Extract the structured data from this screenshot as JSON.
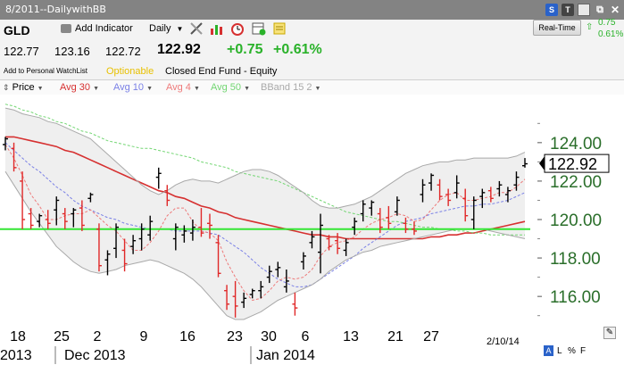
{
  "window": {
    "title": "8/2011--DailywithBB",
    "icons": [
      "s-dropdown-icon",
      "tv-icon",
      "save-icon",
      "restore-icon",
      "close-icon"
    ]
  },
  "toolbar": {
    "symbol": "GLD",
    "add_indicator": "Add Indicator",
    "period": "Daily",
    "tools": [
      "drawing-tools-icon",
      "indicator-bars-icon",
      "alarm-clock-icon",
      "calendar-add-icon",
      "note-icon"
    ]
  },
  "quote": {
    "open": "122.77",
    "high": "123.16",
    "low": "122.72",
    "last": "122.92",
    "change": "+0.75",
    "change_pct": "+0.61%",
    "watchlist": "Add to Personal WatchList",
    "optionable": "Optionable",
    "description": "Closed End Fund - Equity",
    "realtime_button": "Real-Time",
    "rt_change": "0.75",
    "rt_change_pct": "0.61%"
  },
  "legend": [
    {
      "label": "Price",
      "color": "#000000"
    },
    {
      "label": "Avg 30",
      "color": "#d63030"
    },
    {
      "label": "Avg 10",
      "color": "#7a80e6"
    },
    {
      "label": "Avg 4",
      "color": "#ee7a7a"
    },
    {
      "label": "Avg 50",
      "color": "#72d672"
    },
    {
      "label": "BBand 15 2",
      "color": "#a9a9a9"
    }
  ],
  "chart_data": {
    "type": "candlestick",
    "last_price_label": "122.92",
    "reference_line": 119.5,
    "ylim": [
      114.8,
      126.5
    ],
    "yticks": [
      "124.00",
      "122.00",
      "120.00",
      "118.00",
      "116.00"
    ],
    "xticks": [
      "18",
      "25",
      "2",
      "9",
      "16",
      "23",
      "30",
      "6",
      "13",
      "21",
      "27"
    ],
    "month_labels": [
      "2013",
      "Dec 2013",
      "Jan 2014"
    ],
    "date_label": "2/10/14",
    "bars": [
      {
        "o": 123.9,
        "h": 124.3,
        "l": 123.6,
        "c": 124.2
      },
      {
        "o": 123.7,
        "h": 124.0,
        "l": 122.5,
        "c": 122.7
      },
      {
        "o": 122.0,
        "h": 122.5,
        "l": 119.5,
        "c": 120.0
      },
      {
        "o": 120.3,
        "h": 120.6,
        "l": 119.5,
        "c": 119.7
      },
      {
        "o": 119.9,
        "h": 120.3,
        "l": 119.6,
        "c": 120.2
      },
      {
        "o": 120.0,
        "h": 120.5,
        "l": 119.5,
        "c": 119.8
      },
      {
        "o": 120.5,
        "h": 121.2,
        "l": 119.7,
        "c": 121.0
      },
      {
        "o": 120.3,
        "h": 120.6,
        "l": 119.5,
        "c": 119.9
      },
      {
        "o": 120.3,
        "h": 120.6,
        "l": 119.6,
        "c": 120.5
      },
      {
        "o": 120.6,
        "h": 121.0,
        "l": 119.4,
        "c": 119.7
      },
      {
        "o": 121.1,
        "h": 121.4,
        "l": 120.9,
        "c": 121.3
      },
      {
        "o": 119.5,
        "h": 119.8,
        "l": 117.3,
        "c": 117.6
      },
      {
        "o": 117.9,
        "h": 118.4,
        "l": 117.1,
        "c": 118.2
      },
      {
        "o": 118.5,
        "h": 119.8,
        "l": 118.0,
        "c": 119.6
      },
      {
        "o": 118.4,
        "h": 119.0,
        "l": 117.3,
        "c": 117.7
      },
      {
        "o": 118.6,
        "h": 119.2,
        "l": 118.2,
        "c": 118.9
      },
      {
        "o": 119.0,
        "h": 119.8,
        "l": 118.4,
        "c": 119.5
      },
      {
        "o": 119.2,
        "h": 120.2,
        "l": 118.9,
        "c": 119.9
      },
      {
        "o": 122.2,
        "h": 122.7,
        "l": 121.6,
        "c": 122.4
      },
      {
        "o": 121.5,
        "h": 121.8,
        "l": 120.7,
        "c": 121.0
      },
      {
        "o": 119.0,
        "h": 119.8,
        "l": 118.4,
        "c": 119.6
      },
      {
        "o": 119.2,
        "h": 119.7,
        "l": 118.8,
        "c": 119.4
      },
      {
        "o": 119.3,
        "h": 120.0,
        "l": 118.9,
        "c": 119.6
      },
      {
        "o": 119.6,
        "h": 120.6,
        "l": 119.1,
        "c": 119.3
      },
      {
        "o": 119.8,
        "h": 120.3,
        "l": 119.0,
        "c": 119.7
      },
      {
        "o": 118.8,
        "h": 119.2,
        "l": 117.0,
        "c": 117.2
      },
      {
        "o": 116.3,
        "h": 116.6,
        "l": 115.3,
        "c": 115.6
      },
      {
        "o": 116.0,
        "h": 116.8,
        "l": 114.9,
        "c": 115.5
      },
      {
        "o": 115.7,
        "h": 116.2,
        "l": 115.4,
        "c": 115.9
      },
      {
        "o": 116.1,
        "h": 116.4,
        "l": 115.9,
        "c": 116.3
      },
      {
        "o": 116.3,
        "h": 116.8,
        "l": 115.9,
        "c": 116.5
      },
      {
        "o": 117.0,
        "h": 117.6,
        "l": 116.7,
        "c": 117.3
      },
      {
        "o": 117.4,
        "h": 117.8,
        "l": 117.0,
        "c": 117.5
      },
      {
        "o": 116.5,
        "h": 117.4,
        "l": 116.2,
        "c": 116.8
      },
      {
        "o": 115.6,
        "h": 116.2,
        "l": 115.0,
        "c": 115.4
      },
      {
        "o": 117.8,
        "h": 118.3,
        "l": 117.4,
        "c": 118.1
      },
      {
        "o": 118.8,
        "h": 119.4,
        "l": 118.5,
        "c": 119.1
      },
      {
        "o": 118.3,
        "h": 120.3,
        "l": 117.2,
        "c": 119.7
      },
      {
        "o": 119.0,
        "h": 119.2,
        "l": 118.4,
        "c": 118.6
      },
      {
        "o": 118.9,
        "h": 119.3,
        "l": 118.2,
        "c": 118.5
      },
      {
        "o": 118.4,
        "h": 119.0,
        "l": 118.1,
        "c": 118.8
      },
      {
        "o": 119.6,
        "h": 120.1,
        "l": 119.2,
        "c": 119.9
      },
      {
        "o": 120.3,
        "h": 121.0,
        "l": 119.9,
        "c": 120.8
      },
      {
        "o": 120.6,
        "h": 121.0,
        "l": 120.2,
        "c": 120.9
      },
      {
        "o": 120.3,
        "h": 120.6,
        "l": 119.3,
        "c": 119.6
      },
      {
        "o": 120.1,
        "h": 120.7,
        "l": 119.5,
        "c": 119.8
      },
      {
        "o": 120.4,
        "h": 121.2,
        "l": 120.2,
        "c": 121.0
      },
      {
        "o": 119.8,
        "h": 120.1,
        "l": 119.3,
        "c": 119.5
      },
      {
        "o": 119.5,
        "h": 119.9,
        "l": 119.2,
        "c": 119.4
      },
      {
        "o": 121.3,
        "h": 122.1,
        "l": 120.9,
        "c": 121.8
      },
      {
        "o": 121.9,
        "h": 122.4,
        "l": 121.5,
        "c": 122.3
      },
      {
        "o": 121.8,
        "h": 122.1,
        "l": 121.0,
        "c": 121.2
      },
      {
        "o": 121.3,
        "h": 121.6,
        "l": 120.7,
        "c": 121.0
      },
      {
        "o": 121.4,
        "h": 122.3,
        "l": 121.1,
        "c": 121.9
      },
      {
        "o": 121.1,
        "h": 121.6,
        "l": 119.9,
        "c": 120.2
      },
      {
        "o": 120.0,
        "h": 121.2,
        "l": 119.5,
        "c": 121.0
      },
      {
        "o": 121.2,
        "h": 121.6,
        "l": 120.6,
        "c": 121.4
      },
      {
        "o": 121.5,
        "h": 121.7,
        "l": 120.9,
        "c": 121.1
      },
      {
        "o": 121.6,
        "h": 122.0,
        "l": 121.2,
        "c": 121.8
      },
      {
        "o": 121.3,
        "h": 121.7,
        "l": 120.9,
        "c": 121.5
      },
      {
        "o": 121.8,
        "h": 122.5,
        "l": 121.5,
        "c": 122.2
      },
      {
        "o": 122.8,
        "h": 123.2,
        "l": 122.7,
        "c": 122.9
      }
    ],
    "series": [
      {
        "name": "Avg 30",
        "color": "#d63030",
        "values": [
          124.3,
          124.3,
          124.2,
          124.1,
          124.0,
          123.9,
          123.8,
          123.6,
          123.5,
          123.3,
          123.1,
          122.9,
          122.7,
          122.5,
          122.3,
          122.1,
          121.9,
          121.7,
          121.5,
          121.4,
          121.2,
          121.1,
          120.9,
          120.7,
          120.6,
          120.4,
          120.3,
          120.1,
          120.0,
          119.9,
          119.8,
          119.7,
          119.6,
          119.5,
          119.4,
          119.3,
          119.2,
          119.2,
          119.1,
          119.1,
          119.0,
          119.0,
          119.0,
          119.0,
          119.0,
          119.0,
          119.0,
          119.0,
          119.0,
          119.0,
          119.1,
          119.1,
          119.2,
          119.2,
          119.3,
          119.3,
          119.4,
          119.5,
          119.6,
          119.7,
          119.8,
          119.9
        ]
      },
      {
        "name": "Avg 10",
        "color": "#7a80e6",
        "values": [
          124.0,
          123.6,
          123.2,
          122.8,
          122.5,
          122.1,
          121.7,
          121.4,
          121.0,
          120.7,
          120.5,
          120.3,
          120.1,
          120.0,
          119.8,
          119.7,
          119.6,
          119.5,
          119.5,
          119.5,
          119.4,
          119.4,
          119.4,
          119.4,
          119.3,
          119.2,
          118.9,
          118.6,
          118.3,
          117.9,
          117.5,
          117.2,
          116.9,
          116.7,
          116.5,
          116.5,
          116.6,
          116.9,
          117.2,
          117.5,
          117.8,
          118.1,
          118.5,
          118.8,
          119.1,
          119.4,
          119.7,
          119.9,
          120.0,
          120.1,
          120.3,
          120.4,
          120.5,
          120.6,
          120.7,
          120.7,
          120.8,
          120.8,
          120.9,
          121.0,
          121.2,
          121.4
        ]
      },
      {
        "name": "Avg 4",
        "color": "#ee7a7a",
        "values": [
          123.9,
          123.2,
          122.3,
          121.3,
          120.7,
          120.0,
          120.0,
          120.2,
          120.3,
          120.3,
          120.5,
          120.1,
          119.7,
          119.4,
          118.9,
          118.4,
          118.4,
          118.8,
          119.4,
          120.2,
          120.6,
          120.6,
          119.9,
          119.4,
          119.3,
          118.9,
          117.8,
          117.0,
          116.3,
          115.8,
          115.9,
          116.3,
          116.8,
          117.0,
          116.9,
          117.0,
          117.4,
          118.1,
          118.6,
          118.8,
          118.9,
          119.1,
          119.5,
          119.8,
          120.0,
          120.1,
          120.3,
          120.2,
          119.9,
          120.0,
          120.5,
          121.0,
          121.3,
          121.4,
          121.0,
          121.0,
          121.1,
          121.2,
          121.4,
          121.4,
          121.7,
          122.1
        ]
      },
      {
        "name": "Avg 50",
        "color": "#72d672",
        "values": [
          126.0,
          125.9,
          125.7,
          125.6,
          125.4,
          125.3,
          125.1,
          125.0,
          124.8,
          124.6,
          124.5,
          124.3,
          124.1,
          124.0,
          123.9,
          123.8,
          123.7,
          123.7,
          123.6,
          123.5,
          123.4,
          123.3,
          123.2,
          123.0,
          122.9,
          122.8,
          122.7,
          122.5,
          122.4,
          122.3,
          122.2,
          122.1,
          122.0,
          121.8,
          121.6,
          121.4,
          121.2,
          121.0,
          120.8,
          120.6,
          120.4,
          120.3,
          120.2,
          120.1,
          120.0,
          119.9,
          119.9,
          119.8,
          119.7,
          119.6,
          119.6,
          119.5,
          119.5,
          119.4,
          119.4,
          119.3,
          119.3,
          119.2,
          119.2,
          119.2,
          119.2,
          119.2
        ]
      },
      {
        "name": "BBand upper",
        "color": "#a9a9a9",
        "values": [
          125.8,
          125.7,
          125.5,
          125.4,
          125.3,
          125.1,
          125.0,
          124.8,
          124.6,
          124.4,
          124.2,
          123.8,
          123.4,
          123.0,
          122.6,
          122.2,
          121.8,
          121.5,
          121.3,
          121.5,
          121.8,
          122.0,
          122.1,
          122.0,
          122.0,
          121.9,
          122.1,
          122.3,
          122.5,
          122.6,
          122.6,
          122.5,
          122.3,
          122.0,
          121.7,
          121.4,
          121.0,
          120.7,
          120.6,
          120.6,
          120.7,
          120.8,
          121.0,
          121.2,
          121.5,
          121.8,
          122.1,
          122.4,
          122.6,
          122.8,
          122.9,
          123.0,
          123.0,
          123.1,
          123.1,
          123.2,
          123.2,
          123.2,
          123.2,
          123.2,
          123.3,
          123.5
        ]
      },
      {
        "name": "BBand lower",
        "color": "#a9a9a9",
        "values": [
          122.5,
          121.8,
          121.1,
          120.4,
          119.8,
          119.2,
          118.6,
          118.2,
          117.8,
          117.5,
          117.3,
          117.2,
          117.3,
          117.4,
          117.6,
          117.7,
          117.8,
          117.9,
          117.8,
          117.6,
          117.4,
          117.2,
          116.9,
          116.5,
          116.0,
          115.5,
          115.0,
          114.8,
          114.8,
          115.0,
          115.2,
          115.5,
          115.8,
          116.0,
          116.2,
          116.4,
          116.6,
          116.9,
          117.3,
          117.6,
          117.9,
          118.1,
          118.3,
          118.4,
          118.6,
          118.7,
          118.8,
          118.9,
          119.0,
          119.1,
          119.2,
          119.3,
          119.4,
          119.5,
          119.5,
          119.5,
          119.5,
          119.4,
          119.3,
          119.2,
          119.1,
          119.0
        ]
      }
    ]
  },
  "footer": {
    "corner_a": "A",
    "corner_l": "L",
    "corner_pct": "%",
    "corner_f": "F"
  }
}
